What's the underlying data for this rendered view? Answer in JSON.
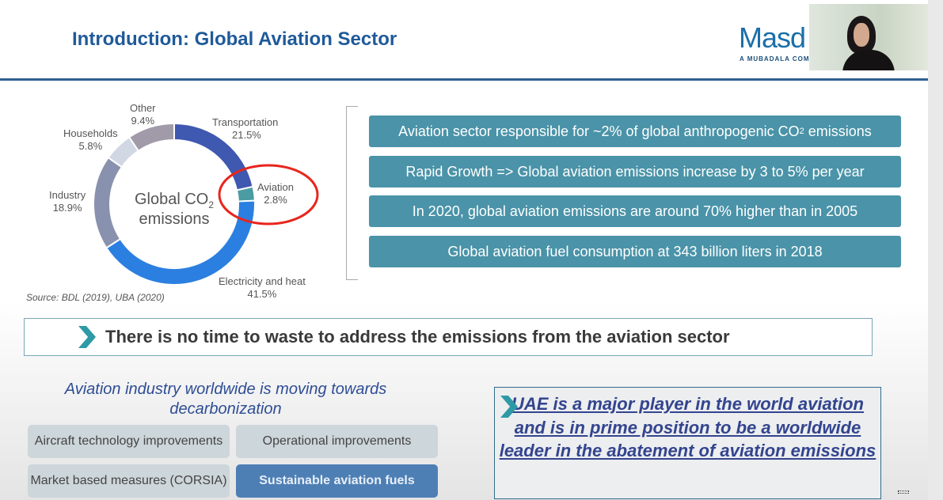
{
  "slide": {
    "title": "Introduction: Global Aviation Sector",
    "logo": {
      "name": "Masd",
      "tagline": "A MUBADALA COM"
    },
    "video_thumbnail": "presenter-video",
    "chart_center_label": {
      "line1": "Global CO",
      "sub": "2",
      "line2": "emissions"
    },
    "source": "Source: BDL (2019), UBA (2020)",
    "facts": [
      {
        "text": "Aviation sector responsible for ~2% of global anthropogenic CO",
        "sub": "2",
        "tail": " emissions"
      },
      {
        "text": "Rapid Growth => Global aviation emissions increase by 3 to 5% per year"
      },
      {
        "text": "In 2020, global aviation emissions are around 70% higher than in 2005"
      },
      {
        "text": "Global aviation fuel consumption at 343 billion liters in 2018"
      }
    ],
    "key_message": "There is no time to waste to address the emissions from the aviation sector",
    "decarb_heading": "Aviation industry worldwide is moving towards decarbonization",
    "tiles": [
      "Aircraft technology improvements",
      "Operational improvements",
      "Market based measures (CORSIA)",
      "Sustainable aviation fuels"
    ],
    "uae_statement": "UAE is a major player in the world aviation and is in prime position to be a worldwide leader in the abatement of aviation emissions",
    "highlight_color": "#e8251b"
  },
  "chart_data": {
    "type": "pie",
    "donut": true,
    "categories": [
      "Transportation",
      "Aviation",
      "Electricity and heat",
      "Industry",
      "Households",
      "Other"
    ],
    "values": [
      21.5,
      2.8,
      41.5,
      18.9,
      5.8,
      9.4
    ],
    "labels": [
      "21.5%",
      "2.8%",
      "41.5%",
      "18.9%",
      "5.8%",
      "9.4%"
    ],
    "colors": [
      "#3f58b0",
      "#4b9ba2",
      "#2b7fe0",
      "#8891ad",
      "#d1d7e3",
      "#a19ba9"
    ],
    "highlighted": "Aviation"
  }
}
